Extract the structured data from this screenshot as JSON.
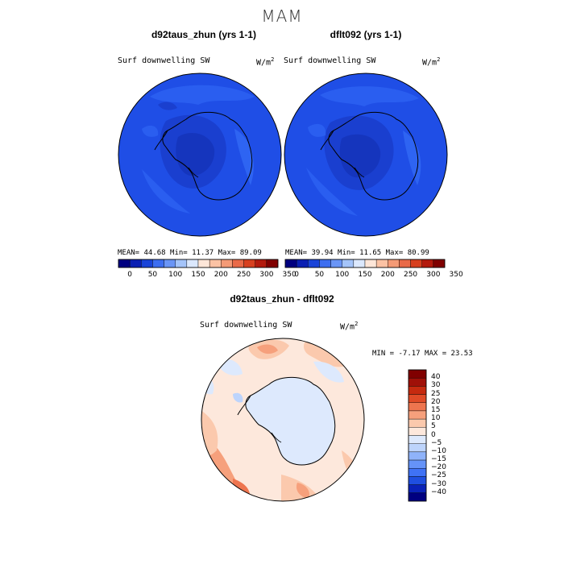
{
  "season": "MAM",
  "colors": {
    "cbar_abs": [
      "#000080",
      "#0a1fb3",
      "#1a44d8",
      "#3d6ef0",
      "#6a95f6",
      "#a4c4fa",
      "#dbe8fd",
      "#fde6d8",
      "#fbc2a4",
      "#f49a76",
      "#e96a48",
      "#d7401f",
      "#b31a0d",
      "#800000"
    ],
    "cbar_diff": [
      "#000080",
      "#0a22b8",
      "#1f4fe0",
      "#3f72f5",
      "#6593f8",
      "#8fb3fa",
      "#bdd4fc",
      "#dde9fd",
      "#fde8dc",
      "#fbc9ad",
      "#f6a07c",
      "#ee754f",
      "#e04b27",
      "#c62a0f",
      "#a01008",
      "#800000"
    ]
  },
  "panels": [
    {
      "title": "d92taus_zhun (yrs 1-1)",
      "variable": "Surf downwelling SW",
      "units": "W/m",
      "units_exp": "2",
      "stats": "MEAN=  44.68  Min=  11.37  Max=  89.09",
      "colorbar_ticks": [
        "0",
        "50",
        "100",
        "150",
        "200",
        "250",
        "300",
        "350"
      ]
    },
    {
      "title": "dflt092 (yrs 1-1)",
      "variable": "Surf downwelling SW",
      "units": "W/m",
      "units_exp": "2",
      "stats": "MEAN=  39.94  Min=  11.65  Max=  80.99",
      "colorbar_ticks": [
        "0",
        "50",
        "100",
        "150",
        "200",
        "250",
        "300",
        "350"
      ]
    }
  ],
  "diff_panel": {
    "title": "d92taus_zhun - dflt092",
    "variable": "Surf downwelling SW",
    "units": "W/m",
    "units_exp": "2",
    "stats": "MIN =   -7.17  MAX =   23.53",
    "colorbar_ticks": [
      "40",
      "30",
      "25",
      "20",
      "15",
      "10",
      "5",
      "0",
      "−5",
      "−10",
      "−15",
      "−20",
      "−25",
      "−30",
      "−40"
    ]
  }
}
